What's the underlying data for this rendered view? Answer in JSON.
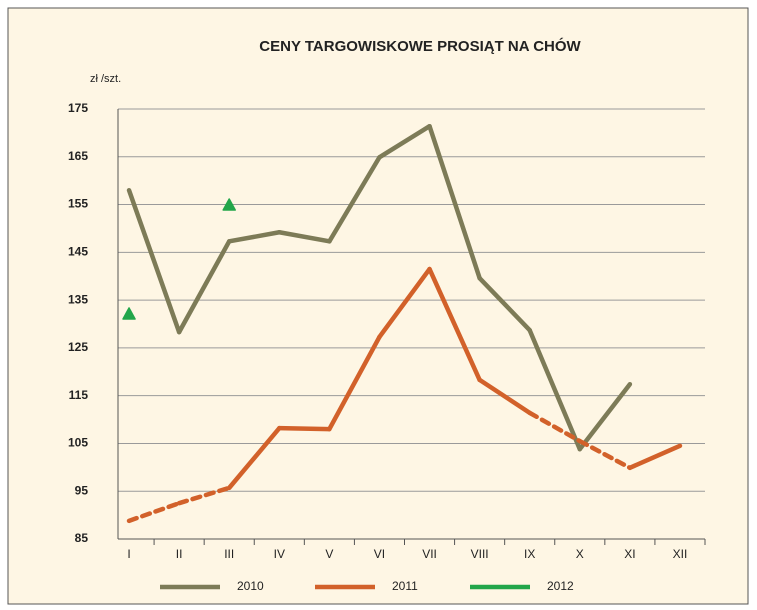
{
  "chart_data": {
    "type": "line",
    "title": "CENY TARGOWISKOWE PROSIĄT NA CHÓW",
    "y_label": "zł /szt.",
    "categories": [
      "I",
      "II",
      "III",
      "IV",
      "V",
      "VI",
      "VII",
      "VIII",
      "IX",
      "X",
      "XI",
      "XII"
    ],
    "series": [
      {
        "name": "2010",
        "color": "#7d7b57",
        "marker": "none",
        "values": [
          158,
          128.3,
          147.3,
          149.2,
          147.3,
          164.9,
          171.4,
          139.6,
          128.7,
          103.8,
          117.4,
          null
        ]
      },
      {
        "name": "2011",
        "color": "#d2612a",
        "marker": "none",
        "dashed": [
          [
            0,
            2
          ],
          [
            8,
            10
          ]
        ],
        "values": [
          88.8,
          92.5,
          95.7,
          108.2,
          108,
          127.3,
          141.5,
          118.3,
          111.4,
          105.5,
          99.9,
          104.5
        ]
      },
      {
        "name": "2012",
        "color": "#22a64a",
        "marker": "triangle",
        "values": [
          132.1,
          null,
          154.9,
          null,
          null,
          null,
          null,
          null,
          null,
          null,
          null,
          null
        ]
      }
    ],
    "ylim": [
      85,
      175
    ],
    "yticks": [
      85,
      95,
      105,
      115,
      125,
      135,
      145,
      155,
      165,
      175
    ],
    "grid": true,
    "legend": "bottom"
  }
}
